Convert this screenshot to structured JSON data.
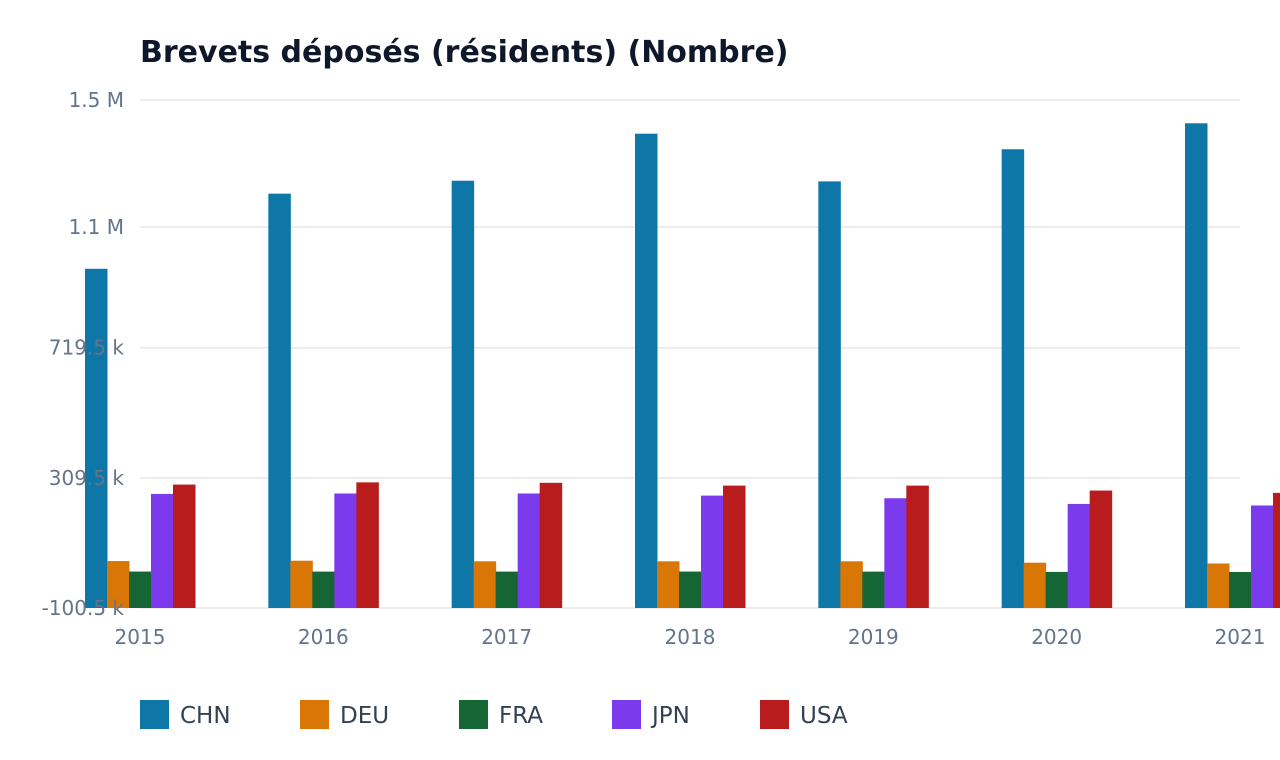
{
  "chart_data": {
    "type": "bar",
    "title": "Brevets déposés (résidents) (Nombre)",
    "xlabel": "",
    "ylabel": "",
    "categories": [
      "2015",
      "2016",
      "2017",
      "2018",
      "2019",
      "2020",
      "2021"
    ],
    "ylim": [
      -100500,
      1500000
    ],
    "y_ticks": [
      {
        "value": -100500,
        "label": "-100.5 k"
      },
      {
        "value": 309500,
        "label": "309.5 k"
      },
      {
        "value": 719500,
        "label": "719.5 k"
      },
      {
        "value": 1100000,
        "label": "1.1 M"
      },
      {
        "value": 1500000,
        "label": "1.5 M"
      }
    ],
    "grid": true,
    "legend_position": "bottom-left",
    "series": [
      {
        "name": "CHN",
        "color": "#0e77a8",
        "values": [
          968252,
          1204981,
          1245709,
          1393815,
          1243568,
          1344817,
          1426644
        ]
      },
      {
        "name": "DEU",
        "color": "#d97706",
        "values": [
          47384,
          48480,
          46617,
          46617,
          46632,
          42260,
          39822
        ]
      },
      {
        "name": "FRA",
        "color": "#166534",
        "values": [
          14306,
          14206,
          14205,
          14300,
          14100,
          13200,
          12900
        ]
      },
      {
        "name": "JPN",
        "color": "#7c3aed",
        "values": [
          258839,
          260244,
          260292,
          253630,
          245372,
          227348,
          222452
        ]
      },
      {
        "name": "USA",
        "color": "#b91c1c",
        "values": [
          288335,
          295327,
          293904,
          285095,
          285113,
          269586,
          262244
        ]
      }
    ]
  }
}
